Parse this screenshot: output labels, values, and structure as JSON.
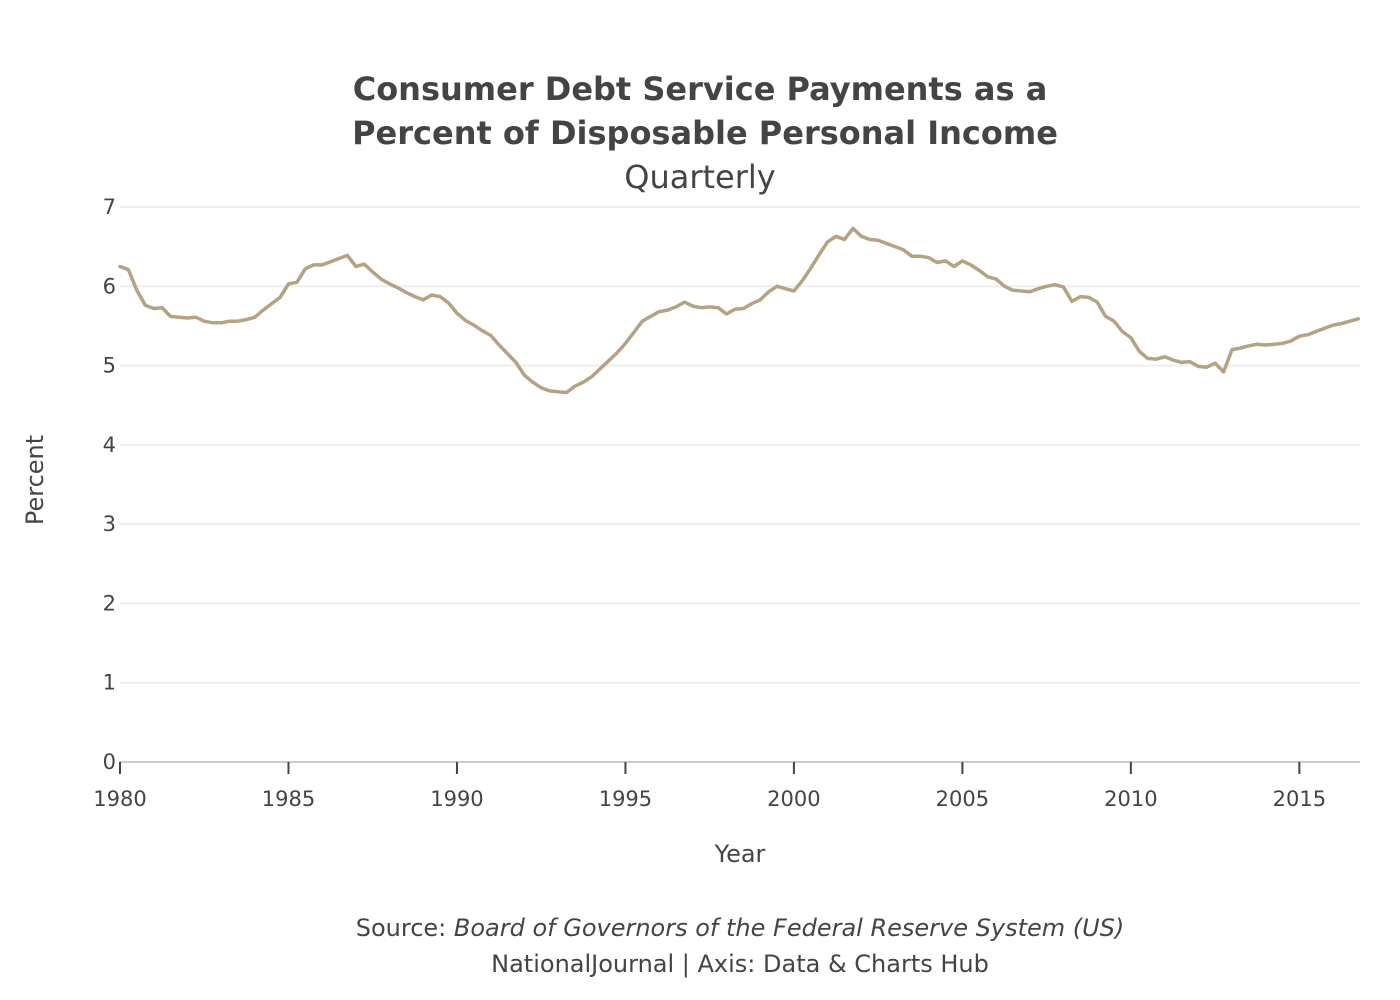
{
  "chart_data": {
    "type": "line",
    "title_lines": [
      "Consumer Debt Service Payments as a",
      "Percent of Disposable Personal Income"
    ],
    "subtitle": "Quarterly",
    "xlabel": "Year",
    "ylabel": "Percent",
    "xlim": [
      1980,
      2016.8
    ],
    "ylim": [
      0,
      7
    ],
    "x_ticks": [
      1980,
      1985,
      1990,
      1995,
      2000,
      2005,
      2010,
      2015
    ],
    "x_tick_labels": [
      "1980",
      "1985",
      "1990",
      "1995",
      "2000",
      "2005",
      "2010",
      "2015"
    ],
    "y_ticks": [
      0,
      1,
      2,
      3,
      4,
      5,
      6,
      7
    ],
    "y_tick_labels": [
      "0",
      "1",
      "2",
      "3",
      "4",
      "5",
      "6",
      "7"
    ],
    "grid": true,
    "line_color": "#b5a283",
    "series": [
      {
        "x": [
          1980.0,
          1980.25,
          1980.5,
          1980.75,
          1981.0,
          1981.25,
          1981.5,
          1981.75,
          1982.0,
          1982.25,
          1982.5,
          1982.75,
          1983.0,
          1983.25,
          1983.5,
          1983.75,
          1984.0,
          1984.25,
          1984.5,
          1984.75,
          1985.0,
          1985.25,
          1985.5,
          1985.75,
          1986.0,
          1986.25,
          1986.5,
          1986.75,
          1987.0,
          1987.25,
          1987.5,
          1987.75,
          1988.0,
          1988.25,
          1988.5,
          1988.75,
          1989.0,
          1989.25,
          1989.5,
          1989.75,
          1990.0,
          1990.25,
          1990.5,
          1990.75,
          1991.0,
          1991.25,
          1991.5,
          1991.75,
          1992.0,
          1992.25,
          1992.5,
          1992.75,
          1993.0,
          1993.25,
          1993.5,
          1993.75,
          1994.0,
          1994.25,
          1994.5,
          1994.75,
          1995.0,
          1995.25,
          1995.5,
          1995.75,
          1996.0,
          1996.25,
          1996.5,
          1996.75,
          1997.0,
          1997.25,
          1997.5,
          1997.75,
          1998.0,
          1998.25,
          1998.5,
          1998.75,
          1999.0,
          1999.25,
          1999.5,
          1999.75,
          2000.0,
          2000.25,
          2000.5,
          2000.75,
          2001.0,
          2001.25,
          2001.5,
          2001.75,
          2002.0,
          2002.25,
          2002.5,
          2002.75,
          2003.0,
          2003.25,
          2003.5,
          2003.75,
          2004.0,
          2004.25,
          2004.5,
          2004.75,
          2005.0,
          2005.25,
          2005.5,
          2005.75,
          2006.0,
          2006.25,
          2006.5,
          2006.75,
          2007.0,
          2007.25,
          2007.5,
          2007.75,
          2008.0,
          2008.25,
          2008.5,
          2008.75,
          2009.0,
          2009.25,
          2009.5,
          2009.75,
          2010.0,
          2010.25,
          2010.5,
          2010.75,
          2011.0,
          2011.25,
          2011.5,
          2011.75,
          2012.0,
          2012.25,
          2012.5,
          2012.75,
          2013.0,
          2013.25,
          2013.5,
          2013.75,
          2014.0,
          2014.25,
          2014.5,
          2014.75,
          2015.0,
          2015.25,
          2015.5,
          2015.75,
          2016.0,
          2016.25,
          2016.5,
          2016.75
        ],
        "values": [
          6.25,
          6.21,
          5.95,
          5.76,
          5.72,
          5.73,
          5.62,
          5.61,
          5.6,
          5.61,
          5.56,
          5.54,
          5.54,
          5.56,
          5.56,
          5.58,
          5.61,
          5.7,
          5.78,
          5.86,
          6.03,
          6.05,
          6.22,
          6.27,
          6.27,
          6.31,
          6.35,
          6.39,
          6.25,
          6.28,
          6.18,
          6.09,
          6.03,
          5.98,
          5.92,
          5.87,
          5.83,
          5.89,
          5.87,
          5.79,
          5.66,
          5.57,
          5.51,
          5.44,
          5.38,
          5.26,
          5.15,
          5.04,
          4.88,
          4.79,
          4.72,
          4.68,
          4.67,
          4.66,
          4.74,
          4.79,
          4.86,
          4.96,
          5.06,
          5.16,
          5.28,
          5.42,
          5.56,
          5.62,
          5.68,
          5.7,
          5.74,
          5.8,
          5.75,
          5.73,
          5.74,
          5.73,
          5.65,
          5.71,
          5.72,
          5.78,
          5.83,
          5.93,
          6.0,
          5.97,
          5.94,
          6.07,
          6.23,
          6.4,
          6.56,
          6.63,
          6.59,
          6.73,
          6.63,
          6.59,
          6.58,
          6.54,
          6.5,
          6.46,
          6.38,
          6.38,
          6.36,
          6.3,
          6.32,
          6.25,
          6.32,
          6.27,
          6.2,
          6.12,
          6.09,
          6.0,
          5.95,
          5.94,
          5.93,
          5.97,
          6.0,
          6.02,
          5.99,
          5.81,
          5.87,
          5.86,
          5.8,
          5.62,
          5.56,
          5.43,
          5.35,
          5.18,
          5.09,
          5.08,
          5.11,
          5.07,
          5.04,
          5.05,
          4.99,
          4.98,
          5.03,
          4.92,
          5.2,
          5.22,
          5.25,
          5.27,
          5.26,
          5.27,
          5.28,
          5.31,
          5.37,
          5.39,
          5.43,
          5.47,
          5.51,
          5.53,
          5.56,
          5.59
        ]
      }
    ]
  },
  "source": {
    "prefix": "Source: ",
    "name": "Board of Governors of the Federal Reserve System (US)",
    "credit": "NationalJournal | Axis: Data & Charts Hub"
  }
}
